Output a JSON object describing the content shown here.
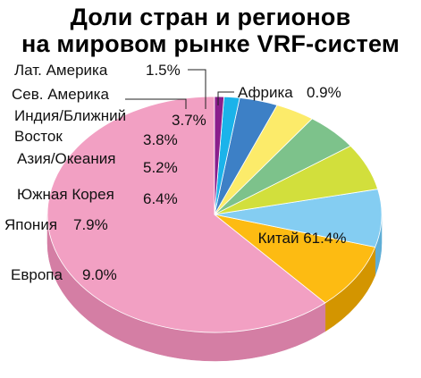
{
  "chart_data": {
    "type": "pie",
    "title_lines": [
      "Доли стран и регионов",
      "на мировом рынке VRF-систем"
    ],
    "slices": [
      {
        "label": "Китай",
        "value": 61.4,
        "value_text": "61.4%",
        "color": "#F2A0C3",
        "side": "#D47EA4"
      },
      {
        "label": "Европа",
        "value": 9.0,
        "value_text": "9.0%",
        "color": "#FDBB12",
        "side": "#D39500"
      },
      {
        "label": "Япония",
        "value": 7.9,
        "value_text": "7.9%",
        "color": "#84CDF2",
        "side": "#5FAED6"
      },
      {
        "label": "Южная Корея",
        "value": 6.4,
        "value_text": "6.4%",
        "color": "#D2DF3C",
        "side": "#AEBB22"
      },
      {
        "label": "Азия/Океания",
        "value": 5.2,
        "value_text": "5.2%",
        "color": "#7DC28B",
        "side": "#5DA26C"
      },
      {
        "label": "Индия/Ближний Восток",
        "value": 3.8,
        "value_text": "3.8%",
        "color": "#FCEB6A",
        "side": "#D6C646"
      },
      {
        "label": "Сев. Америка",
        "value": 3.7,
        "value_text": "3.7%",
        "color": "#3D80C6",
        "side": "#2A62A0"
      },
      {
        "label": "Лат. Америка",
        "value": 1.5,
        "value_text": "1.5%",
        "color": "#1BB3EA",
        "side": "#1090C2"
      },
      {
        "label": "Африка",
        "value": 0.9,
        "value_text": "0.9%",
        "color": "#8A1E8C",
        "side": "#6B146D"
      }
    ],
    "legend": "none"
  }
}
